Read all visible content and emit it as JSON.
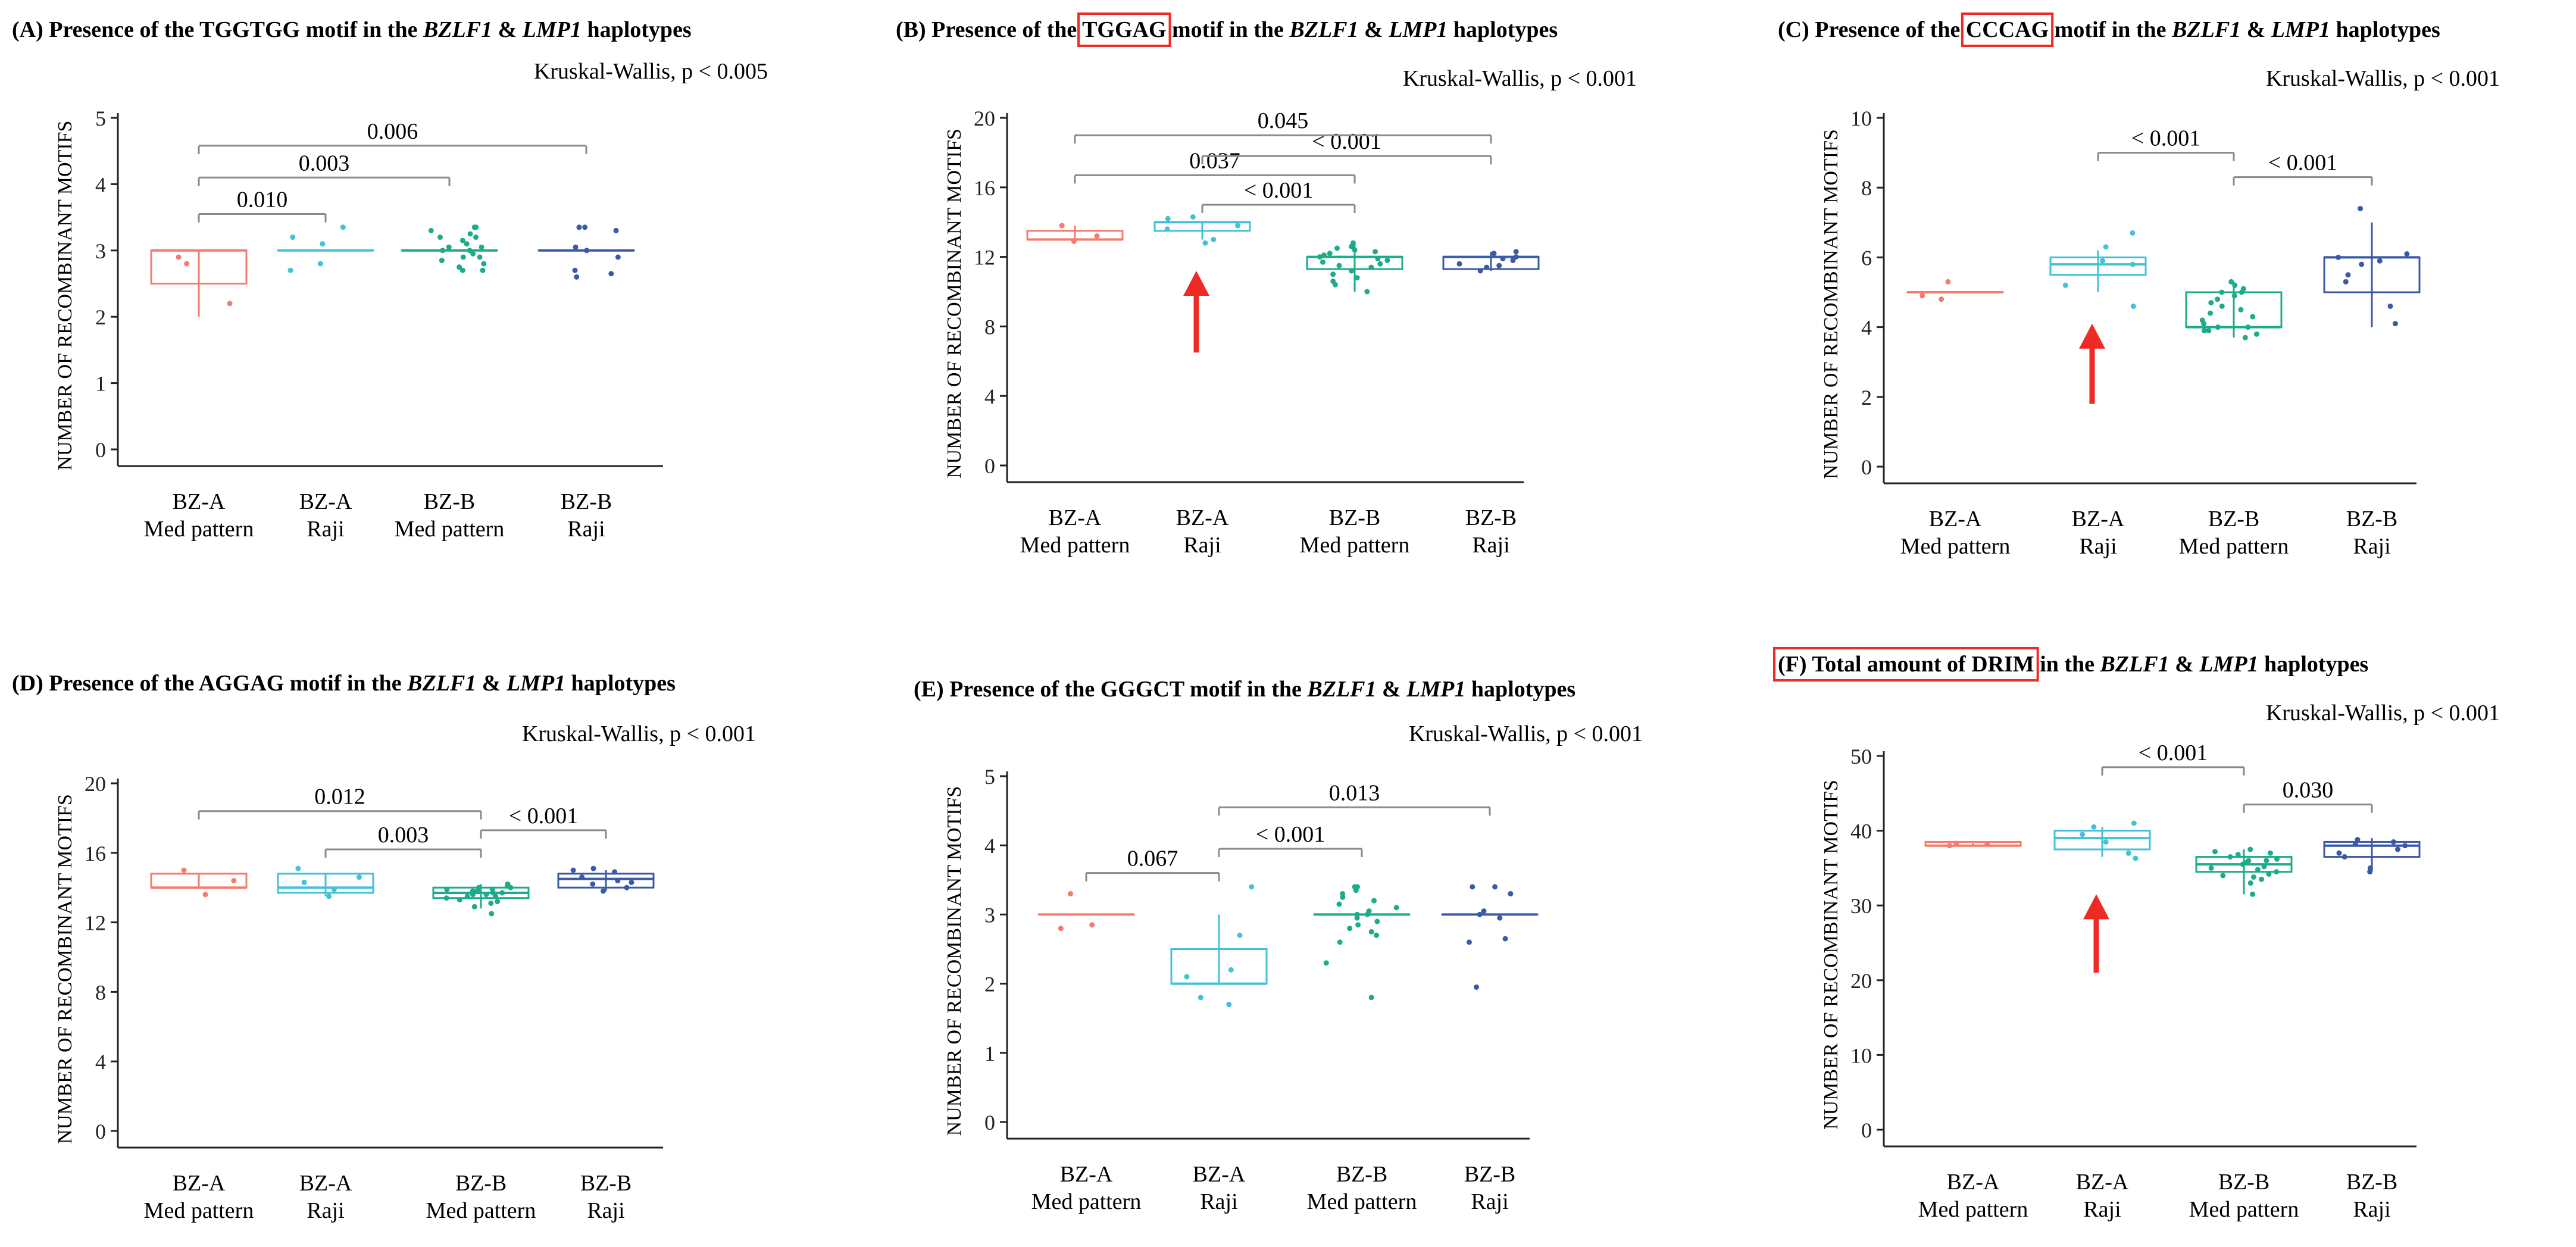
{
  "chart_data": [
    {
      "id": "A",
      "type": "box",
      "title": {
        "prefix": "(A) Presence of the TGGTGG motif in the ",
        "gene1": "BZLF1",
        "amp": " & ",
        "gene2": "LMP1",
        "suffix": " haplotypes"
      },
      "highlight": "",
      "test": {
        "name": "Kruskal-Wallis,",
        "p": "p < 0.005"
      },
      "ylabel": "NUMBER OF RECOMBINANT MOTIFS",
      "ylim": [
        0,
        5
      ],
      "yticks": [
        0,
        1,
        2,
        3,
        4,
        5
      ],
      "categories": [
        [
          "BZ-A",
          "Med pattern"
        ],
        [
          "BZ-A",
          "Raji"
        ],
        [
          "BZ-B",
          "Med pattern"
        ],
        [
          "BZ-B",
          "Raji"
        ]
      ],
      "series": [
        {
          "q1": 2.5,
          "median": 3,
          "q3": 3,
          "whisker_low": 2.0,
          "whisker_high": 3.0,
          "points": [
            2.8,
            2.9,
            2.2
          ],
          "color": "#f47c6c"
        },
        {
          "q1": 3,
          "median": 3,
          "q3": 3,
          "whisker_low": 3,
          "whisker_high": 3,
          "points": [
            2.7,
            2.8,
            3.1,
            3.2,
            3.35
          ],
          "color": "#43c1d9"
        },
        {
          "q1": 3,
          "median": 3,
          "q3": 3,
          "whisker_low": 3,
          "whisker_high": 3,
          "points": [
            2.7,
            2.75,
            2.8,
            2.9,
            2.95,
            3.0,
            3.05,
            3.1,
            3.15,
            3.2,
            3.25,
            3.3,
            3.35,
            2.85,
            3.05,
            3.2,
            2.7,
            3.35,
            3.0,
            2.9
          ],
          "color": "#1dab8a"
        },
        {
          "q1": 3,
          "median": 3,
          "q3": 3,
          "whisker_low": 3,
          "whisker_high": 3,
          "points": [
            2.6,
            2.65,
            3.0,
            3.05,
            3.3,
            3.35,
            2.9,
            3.35,
            2.7
          ],
          "color": "#3b5aa6"
        }
      ],
      "comparisons": [
        {
          "from": 0,
          "to": 1,
          "y": 3.55,
          "label": "0.010"
        },
        {
          "from": 0,
          "to": 2,
          "y": 4.1,
          "label": "0.003"
        },
        {
          "from": 0,
          "to": 3,
          "y": 4.58,
          "label": "0.006"
        }
      ],
      "arrow": null
    },
    {
      "id": "B",
      "type": "box",
      "title": {
        "prefix": "(B) Presence of the ",
        "gene1": "BZLF1",
        "amp": " & ",
        "gene2": "LMP1",
        "suffix": " haplotypes"
      },
      "highlight": "TGGAG",
      "highlight_suffix": " motif in the ",
      "test": {
        "name": "Kruskal-Wallis,",
        "p": "p < 0.001"
      },
      "ylabel": "NUMBER OF RECOMBINANT MOTIFS",
      "ylim": [
        0,
        20
      ],
      "yticks": [
        0,
        4,
        8,
        12,
        16,
        20
      ],
      "categories": [
        [
          "BZ-A",
          "Med pattern"
        ],
        [
          "BZ-A",
          "Raji"
        ],
        [
          "BZ-B",
          "Med pattern"
        ],
        [
          "BZ-B",
          "Raji"
        ]
      ],
      "series": [
        {
          "q1": 13,
          "median": 13,
          "q3": 13.5,
          "whisker_low": 13,
          "whisker_high": 13.8,
          "points": [
            13.8,
            13.2,
            12.9
          ],
          "color": "#f47c6c"
        },
        {
          "q1": 13.5,
          "median": 14,
          "q3": 14,
          "whisker_low": 13,
          "whisker_high": 14,
          "points": [
            13.8,
            14.2,
            13.6,
            12.8,
            14.3,
            13.0
          ],
          "color": "#43c1d9"
        },
        {
          "q1": 11.3,
          "median": 12,
          "q3": 12,
          "whisker_low": 10,
          "whisker_high": 12.8,
          "points": [
            10.0,
            10.4,
            10.8,
            11.0,
            11.2,
            11.4,
            11.6,
            11.8,
            12.0,
            12.1,
            12.2,
            12.3,
            12.5,
            12.6,
            12.8,
            11.9,
            11.5,
            12.4,
            10.6,
            11.7
          ],
          "color": "#1dab8a"
        },
        {
          "q1": 11.3,
          "median": 12,
          "q3": 12,
          "whisker_low": 11.2,
          "whisker_high": 12.3,
          "points": [
            11.2,
            11.4,
            11.6,
            12.0,
            12.2,
            11.8,
            12.3,
            11.5,
            11.9
          ],
          "color": "#3b5aa6"
        }
      ],
      "comparisons": [
        {
          "from": 1,
          "to": 2,
          "y": 15.0,
          "label": "< 0.001"
        },
        {
          "from": 0,
          "to": 2,
          "y": 16.7,
          "label": "0.037"
        },
        {
          "from": 1,
          "to": 3,
          "y": 17.8,
          "label": "< 0.001"
        },
        {
          "from": 0,
          "to": 3,
          "y": 19.0,
          "label": "0.045"
        }
      ],
      "arrow": {
        "category": 1,
        "y_from": 6.5,
        "y_to": 11.2
      }
    },
    {
      "id": "C",
      "type": "box",
      "title": {
        "prefix": "(C) Presence of the ",
        "gene1": "BZLF1",
        "amp": " & ",
        "gene2": "LMP1",
        "suffix": " haplotypes"
      },
      "highlight": "CCCAG",
      "highlight_suffix": " motif in the ",
      "test": {
        "name": "Kruskal-Wallis,",
        "p": "p < 0.001"
      },
      "ylabel": "NUMBER OF RECOMBINANT MOTIFS",
      "ylim": [
        0,
        10
      ],
      "yticks": [
        0,
        2,
        4,
        6,
        8,
        10
      ],
      "categories": [
        [
          "BZ-A",
          "Med pattern"
        ],
        [
          "BZ-A",
          "Raji"
        ],
        [
          "BZ-B",
          "Med pattern"
        ],
        [
          "BZ-B",
          "Raji"
        ]
      ],
      "series": [
        {
          "q1": 5,
          "median": 5,
          "q3": 5,
          "whisker_low": 5,
          "whisker_high": 5,
          "points": [
            4.8,
            5.3,
            4.9
          ],
          "color": "#f47c6c"
        },
        {
          "q1": 5.5,
          "median": 5.8,
          "q3": 6,
          "whisker_low": 5,
          "whisker_high": 6.2,
          "points": [
            6.7,
            6.3,
            5.9,
            5.2,
            4.6,
            5.8
          ],
          "color": "#43c1d9"
        },
        {
          "q1": 4,
          "median": 4,
          "q3": 5,
          "whisker_low": 3.7,
          "whisker_high": 5.3,
          "points": [
            3.7,
            3.8,
            3.9,
            4.0,
            4.1,
            4.2,
            4.3,
            4.4,
            4.6,
            4.8,
            4.9,
            5.0,
            5.1,
            5.2,
            5.3,
            4.0,
            4.5,
            3.9,
            5.0,
            4.7
          ],
          "color": "#1dab8a"
        },
        {
          "q1": 5,
          "median": 6,
          "q3": 6,
          "whisker_low": 4,
          "whisker_high": 7,
          "points": [
            7.4,
            6.0,
            5.9,
            5.8,
            5.5,
            5.3,
            4.6,
            4.1,
            6.1
          ],
          "color": "#3b5aa6"
        }
      ],
      "comparisons": [
        {
          "from": 2,
          "to": 3,
          "y": 8.3,
          "label": "< 0.001"
        },
        {
          "from": 1,
          "to": 2,
          "y": 9.0,
          "label": "< 0.001"
        }
      ],
      "arrow": {
        "category": 1,
        "y_from": 1.8,
        "y_to": 4.1
      }
    },
    {
      "id": "D",
      "type": "box",
      "title": {
        "prefix": "(D) Presence of the AGGAG motif in the ",
        "gene1": "BZLF1",
        "amp": " & ",
        "gene2": "LMP1",
        "suffix": " haplotypes"
      },
      "highlight": "",
      "test": {
        "name": "Kruskal-Wallis,",
        "p": "p < 0.001"
      },
      "ylabel": "NUMBER OF RECOMBINANT MOTIFS",
      "ylim": [
        0,
        20
      ],
      "yticks": [
        0,
        4,
        8,
        12,
        16,
        20
      ],
      "categories": [
        [
          "BZ-A",
          "Med pattern"
        ],
        [
          "BZ-A",
          "Raji"
        ],
        [
          "BZ-B",
          "Med pattern"
        ],
        [
          "BZ-B",
          "Raji"
        ]
      ],
      "series": [
        {
          "q1": 14,
          "median": 14,
          "q3": 14.8,
          "whisker_low": 14,
          "whisker_high": 14.8,
          "points": [
            15.0,
            14.4,
            13.6
          ],
          "color": "#f47c6c"
        },
        {
          "q1": 13.7,
          "median": 14,
          "q3": 14.8,
          "whisker_low": 13.5,
          "whisker_high": 14.8,
          "points": [
            14.6,
            14.3,
            15.1,
            13.5,
            13.9
          ],
          "color": "#43c1d9"
        },
        {
          "q1": 13.4,
          "median": 13.7,
          "q3": 14,
          "whisker_low": 12.8,
          "whisker_high": 14.2,
          "points": [
            12.5,
            12.9,
            13.1,
            13.3,
            13.5,
            13.6,
            13.7,
            13.8,
            13.9,
            14.0,
            14.1,
            14.2,
            13.4,
            13.6,
            13.8,
            13.2,
            14.0,
            13.7,
            13.9,
            13.5
          ],
          "color": "#1dab8a"
        },
        {
          "q1": 14,
          "median": 14.5,
          "q3": 14.8,
          "whisker_low": 13.8,
          "whisker_high": 15,
          "points": [
            15.1,
            14.9,
            14.6,
            14.3,
            14.0,
            13.8,
            14.4,
            15.0,
            14.2
          ],
          "color": "#3b5aa6"
        }
      ],
      "comparisons": [
        {
          "from": 1,
          "to": 2,
          "y": 16.2,
          "label": "0.003"
        },
        {
          "from": 2,
          "to": 3,
          "y": 17.3,
          "label": "< 0.001"
        },
        {
          "from": 0,
          "to": 2,
          "y": 18.4,
          "label": "0.012"
        }
      ],
      "arrow": null
    },
    {
      "id": "E",
      "type": "box",
      "title": {
        "prefix": "(E) Presence of the GGGCT motif in the ",
        "gene1": "BZLF1",
        "amp": " & ",
        "gene2": "LMP1",
        "suffix": " haplotypes"
      },
      "highlight": "",
      "test": {
        "name": "Kruskal-Wallis,",
        "p": "p < 0.001"
      },
      "ylabel": "NUMBER OF RECOMBINANT MOTIFS",
      "ylim": [
        0,
        5
      ],
      "yticks": [
        0,
        1,
        2,
        3,
        4,
        5
      ],
      "categories": [
        [
          "BZ-A",
          "Med pattern"
        ],
        [
          "BZ-A",
          "Raji"
        ],
        [
          "BZ-B",
          "Med pattern"
        ],
        [
          "BZ-B",
          "Raji"
        ]
      ],
      "series": [
        {
          "q1": 3,
          "median": 3,
          "q3": 3,
          "whisker_low": 3,
          "whisker_high": 3,
          "points": [
            3.3,
            2.85,
            2.8
          ],
          "color": "#f47c6c"
        },
        {
          "q1": 2,
          "median": 2,
          "q3": 2.5,
          "whisker_low": 2,
          "whisker_high": 3,
          "points": [
            3.4,
            2.7,
            2.2,
            2.1,
            1.8,
            1.7
          ],
          "color": "#43c1d9"
        },
        {
          "q1": 3,
          "median": 3,
          "q3": 3,
          "whisker_low": 3,
          "whisker_high": 3,
          "points": [
            1.8,
            2.3,
            2.6,
            2.7,
            2.8,
            2.9,
            3.0,
            3.05,
            3.1,
            3.2,
            3.3,
            3.35,
            3.4,
            2.75,
            2.95,
            3.15,
            3.25,
            2.85,
            3.0,
            3.4
          ],
          "color": "#1dab8a"
        },
        {
          "q1": 3,
          "median": 3,
          "q3": 3,
          "whisker_low": 3,
          "whisker_high": 3,
          "points": [
            1.95,
            2.6,
            2.65,
            3.0,
            3.05,
            3.3,
            3.4,
            3.4,
            2.95
          ],
          "color": "#3b5aa6"
        }
      ],
      "comparisons": [
        {
          "from": 0,
          "to": 1,
          "y": 3.6,
          "label": "0.067"
        },
        {
          "from": 1,
          "to": 2,
          "y": 3.95,
          "label": "< 0.001"
        },
        {
          "from": 1,
          "to": 3,
          "y": 4.55,
          "label": "0.013"
        }
      ],
      "arrow": null
    },
    {
      "id": "F",
      "type": "box",
      "title": {
        "prefix": " in the ",
        "gene1": "BZLF1",
        "amp": " & ",
        "gene2": "LMP1",
        "suffix": " haplotypes"
      },
      "highlight": "(F) Total amount of DRIM",
      "highlight_suffix": "",
      "test": {
        "name": "Kruskal-Wallis,",
        "p": "p < 0.001"
      },
      "ylabel": "NUMBER OF RECOMBINANT MOTIFS",
      "ylim": [
        0,
        50
      ],
      "yticks": [
        0,
        10,
        20,
        30,
        40,
        50
      ],
      "categories": [
        [
          "BZ-A",
          "Med pattern"
        ],
        [
          "BZ-A",
          "Raji"
        ],
        [
          "BZ-B",
          "Med pattern"
        ],
        [
          "BZ-B",
          "Raji"
        ]
      ],
      "series": [
        {
          "q1": 38,
          "median": 38,
          "q3": 38.5,
          "whisker_low": 38,
          "whisker_high": 38.5,
          "points": [
            38.3,
            38.0,
            38.2
          ],
          "color": "#f47c6c"
        },
        {
          "q1": 37.5,
          "median": 39,
          "q3": 40,
          "whisker_low": 36.5,
          "whisker_high": 40.5,
          "points": [
            41.0,
            40.5,
            39.5,
            38.5,
            37.0,
            36.3
          ],
          "color": "#43c1d9"
        },
        {
          "q1": 34.5,
          "median": 35.5,
          "q3": 36.5,
          "whisker_low": 31.5,
          "whisker_high": 37.5,
          "points": [
            31.5,
            33.0,
            33.5,
            34.0,
            34.5,
            35.0,
            35.5,
            36.0,
            36.5,
            37.0,
            37.5,
            36.2,
            35.2,
            34.8,
            36.8,
            33.8,
            35.8,
            37.2,
            34.2,
            36.0
          ],
          "color": "#1dab8a"
        },
        {
          "q1": 36.5,
          "median": 38,
          "q3": 38.5,
          "whisker_low": 34.5,
          "whisker_high": 39,
          "points": [
            38.8,
            38.5,
            38.2,
            37.5,
            37.0,
            36.5,
            35.0,
            34.5,
            38.0
          ],
          "color": "#3b5aa6"
        }
      ],
      "comparisons": [
        {
          "from": 2,
          "to": 3,
          "y": 43.5,
          "label": "0.030"
        },
        {
          "from": 1,
          "to": 2,
          "y": 48.5,
          "label": "< 0.001"
        }
      ],
      "arrow": {
        "category": 1,
        "y_from": 21,
        "y_to": 31.5
      }
    }
  ],
  "colors": {
    "arrow": "#ee2a24",
    "highlight_box": "#ee2a24",
    "bracket": "#8a8a8a",
    "axis": "#222222"
  }
}
